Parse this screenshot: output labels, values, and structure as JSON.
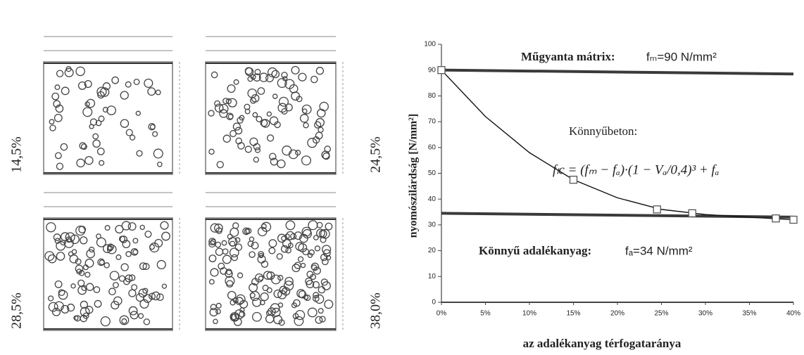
{
  "panels": [
    {
      "label": "14,5%"
    },
    {
      "label": "24,5%"
    },
    {
      "label": "28,5%"
    },
    {
      "label": "38,0%"
    }
  ],
  "chart_data": {
    "type": "line",
    "xlabel": "az adalékanyag térfogataránya",
    "ylabel": "nyomószilárdság [N/mm²]",
    "xlim": [
      0,
      40
    ],
    "ylim": [
      0,
      100
    ],
    "xticks": [
      {
        "value": 0,
        "label": "0%"
      },
      {
        "value": 5,
        "label": "5%"
      },
      {
        "value": 10,
        "label": "10%"
      },
      {
        "value": 15,
        "label": "15%"
      },
      {
        "value": 20,
        "label": "20%"
      },
      {
        "value": 25,
        "label": "25%"
      },
      {
        "value": 30,
        "label": "30%"
      },
      {
        "value": 35,
        "label": "35%"
      },
      {
        "value": 40,
        "label": "40%"
      }
    ],
    "yticks": [
      0,
      10,
      20,
      30,
      40,
      50,
      60,
      70,
      80,
      90,
      100
    ],
    "series": [
      {
        "name": "Műgyanta mátrix:",
        "label": "fₘ=90 N/mm²",
        "color": "#3a3a3a",
        "x": [
          0,
          40
        ],
        "values": [
          90,
          88.5
        ]
      },
      {
        "name": "Könnyű adalékanyag:",
        "label": "fₐ=34 N/mm²",
        "color": "#3a3a3a",
        "x": [
          0,
          40
        ],
        "values": [
          34.5,
          33
        ]
      },
      {
        "name": "Könnyűbeton:",
        "label": "fₗc = (fₘ − fₐ)·(1 − Vₐ/0,4)³ + fₐ",
        "color": "#111111",
        "x": [
          0,
          5,
          10,
          15,
          20,
          25,
          30,
          35,
          40
        ],
        "values": [
          90,
          72,
          58,
          47.5,
          40.5,
          36,
          34,
          33,
          32
        ]
      }
    ],
    "points": {
      "color": "#555555",
      "x": [
        0,
        15,
        24.5,
        28.5,
        38,
        40
      ],
      "values": [
        90,
        47.5,
        36,
        34.5,
        32.5,
        32
      ]
    }
  }
}
